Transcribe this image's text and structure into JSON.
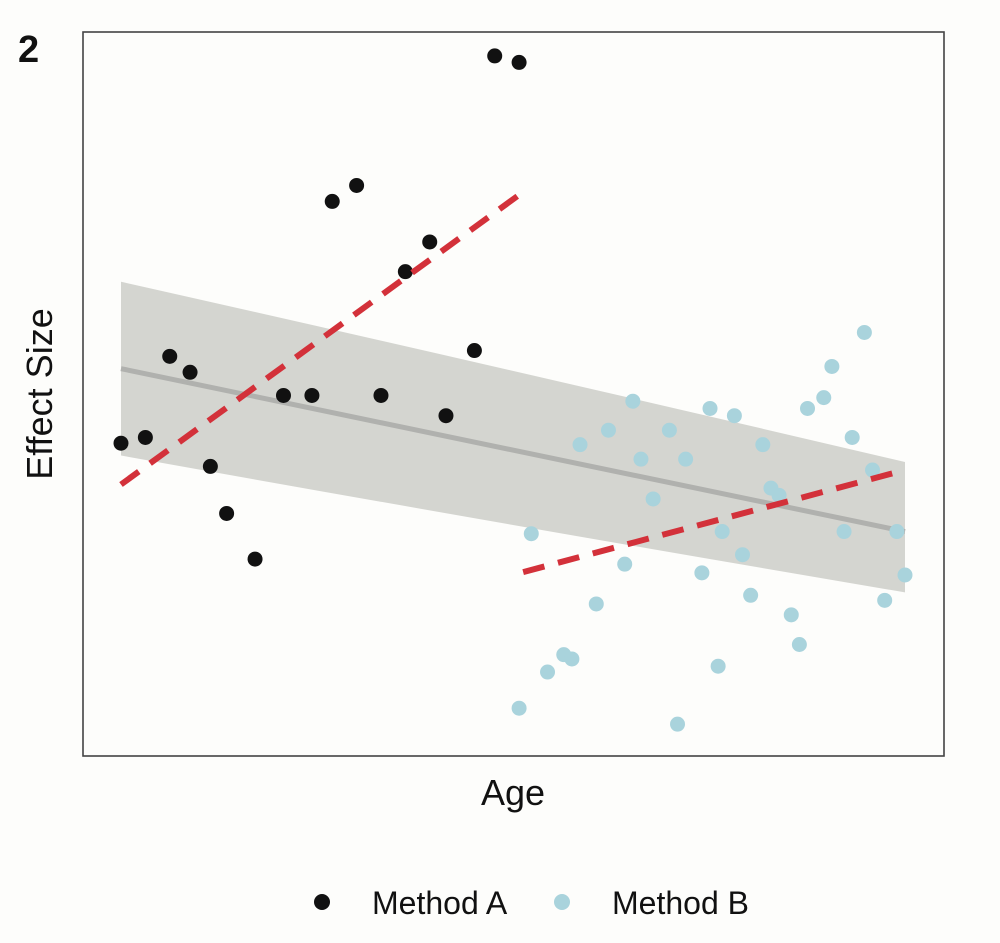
{
  "panel_label": "2",
  "chart_data": {
    "type": "scatter",
    "title": "",
    "xlabel": "Age",
    "ylabel": "Effect Size",
    "xlim": [
      0,
      100
    ],
    "ylim": [
      0,
      100
    ],
    "grid": false,
    "legend_position": "bottom",
    "series": [
      {
        "name": "Method A",
        "color": "#111111",
        "points": [
          [
            4.5,
            43.2
          ],
          [
            7.5,
            44.0
          ],
          [
            10.5,
            55.2
          ],
          [
            13,
            53.0
          ],
          [
            15.5,
            40.0
          ],
          [
            17.5,
            33.5
          ],
          [
            21,
            27.2
          ],
          [
            24.5,
            49.8
          ],
          [
            28,
            49.8
          ],
          [
            30.5,
            76.6
          ],
          [
            33.5,
            78.8
          ],
          [
            36.5,
            49.8
          ],
          [
            39.5,
            66.9
          ],
          [
            42.5,
            71.0
          ],
          [
            44.5,
            47.0
          ],
          [
            48,
            56.0
          ],
          [
            50.5,
            96.7
          ],
          [
            53.5,
            95.8
          ]
        ],
        "trend": {
          "x": [
            4.5,
            53.5
          ],
          "y": [
            37.5,
            77.5
          ]
        }
      },
      {
        "name": "Method B",
        "color": "#a9d3dc",
        "points": [
          [
            53.5,
            6.6
          ],
          [
            55,
            30.7
          ],
          [
            57,
            11.6
          ],
          [
            59,
            14.0
          ],
          [
            60,
            13.4
          ],
          [
            61,
            43.0
          ],
          [
            63,
            21.0
          ],
          [
            64.5,
            45.0
          ],
          [
            66.5,
            26.5
          ],
          [
            67.5,
            49.0
          ],
          [
            68.5,
            41.0
          ],
          [
            70,
            35.5
          ],
          [
            72,
            45.0
          ],
          [
            73,
            4.4
          ],
          [
            74,
            41.0
          ],
          [
            76,
            25.3
          ],
          [
            77,
            48.0
          ],
          [
            78,
            12.4
          ],
          [
            78.5,
            31.0
          ],
          [
            80,
            47.0
          ],
          [
            81,
            27.8
          ],
          [
            82,
            22.2
          ],
          [
            83.5,
            43.0
          ],
          [
            84.5,
            37.0
          ],
          [
            85.5,
            36.0
          ],
          [
            87,
            19.5
          ],
          [
            88,
            15.4
          ],
          [
            89,
            48.0
          ],
          [
            91,
            49.5
          ],
          [
            92,
            53.8
          ],
          [
            93.5,
            31.0
          ],
          [
            94.5,
            44.0
          ],
          [
            96,
            58.5
          ],
          [
            97,
            39.5
          ],
          [
            98.5,
            21.5
          ],
          [
            100,
            31.0
          ],
          [
            101,
            25.0
          ]
        ],
        "trend": {
          "x": [
            54,
            101
          ],
          "y": [
            25.4,
            39.5
          ]
        }
      }
    ],
    "overall_fit": {
      "x": [
        4.5,
        101
      ],
      "y": [
        53.5,
        31.0
      ],
      "ci_lower": [
        41.5,
        22.6
      ],
      "ci_upper": [
        65.5,
        40.6
      ],
      "color": "#b0b1ae",
      "band_color": "#d2d3ce"
    }
  }
}
